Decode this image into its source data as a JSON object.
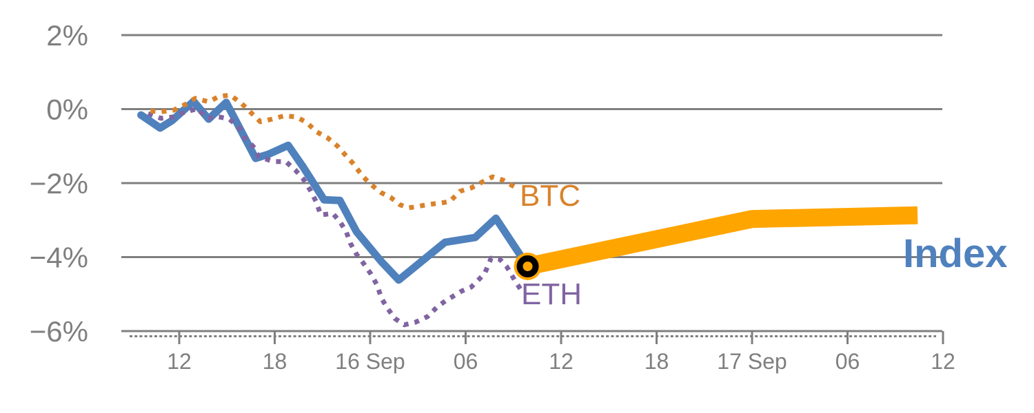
{
  "chart_data": {
    "type": "line",
    "title": "",
    "description": "Intraday percent-change chart: BTC and ETH dotted history, solid Index line with end marker, thick forecast band continuing the Index",
    "x_axis": {
      "unit": "time (hours, ticks every 6h)",
      "ticks": [
        {
          "t": 0,
          "label": "12"
        },
        {
          "t": 6,
          "label": "18"
        },
        {
          "t": 12,
          "label": "16 Sep"
        },
        {
          "t": 18,
          "label": "06"
        },
        {
          "t": 24,
          "label": "12"
        },
        {
          "t": 30,
          "label": "18"
        },
        {
          "t": 36,
          "label": "17 Sep"
        },
        {
          "t": 42,
          "label": "06"
        },
        {
          "t": 48,
          "label": "12"
        }
      ]
    },
    "y_axis": {
      "unit": "percent change",
      "range": [
        -6,
        2
      ],
      "ticks": [
        {
          "v": 2,
          "label": "2%"
        },
        {
          "v": 0,
          "label": "0%"
        },
        {
          "v": -2,
          "label": "−2%"
        },
        {
          "v": -4,
          "label": "−4%"
        },
        {
          "v": -6,
          "label": "−6%"
        }
      ]
    },
    "grid": true,
    "legend_position": "inline-end-of-line",
    "series": [
      {
        "id": "btc",
        "name": "BTC",
        "style": "dotted",
        "color": "#D9822B",
        "points": [
          [
            -1.8,
            -0.05
          ],
          [
            -1.15,
            -0.07
          ],
          [
            -0.35,
            -0.03
          ],
          [
            0.35,
            0.12
          ],
          [
            1,
            0.29
          ],
          [
            1.85,
            0.2
          ],
          [
            2.5,
            0.34
          ],
          [
            3.2,
            0.38
          ],
          [
            3.9,
            0.16
          ],
          [
            4.45,
            -0.07
          ],
          [
            5.1,
            -0.34
          ],
          [
            5.85,
            -0.27
          ],
          [
            6.6,
            -0.18
          ],
          [
            7.35,
            -0.21
          ],
          [
            8,
            -0.36
          ],
          [
            8.65,
            -0.62
          ],
          [
            9.3,
            -0.77
          ],
          [
            9.95,
            -1
          ],
          [
            10.5,
            -1.27
          ],
          [
            10.95,
            -1.48
          ],
          [
            11.5,
            -1.8
          ],
          [
            12,
            -2.02
          ],
          [
            12.7,
            -2.26
          ],
          [
            13.3,
            -2.39
          ],
          [
            13.85,
            -2.58
          ],
          [
            14.4,
            -2.67
          ],
          [
            15,
            -2.63
          ],
          [
            15.6,
            -2.58
          ],
          [
            16.4,
            -2.54
          ],
          [
            17,
            -2.5
          ],
          [
            17.65,
            -2.22
          ],
          [
            18.35,
            -2.13
          ],
          [
            19,
            -1.98
          ],
          [
            19.7,
            -1.83
          ],
          [
            20.35,
            -1.92
          ],
          [
            21.1,
            -2.11
          ]
        ]
      },
      {
        "id": "eth",
        "name": "ETH",
        "style": "dotted",
        "color": "#8064A2",
        "points": [
          [
            -1.95,
            -0.12
          ],
          [
            -1.15,
            -0.25
          ],
          [
            -0.35,
            -0.21
          ],
          [
            0.35,
            -0.08
          ],
          [
            1.15,
            0.01
          ],
          [
            1.75,
            -0.25
          ],
          [
            2.5,
            -0.21
          ],
          [
            3.15,
            -0.27
          ],
          [
            3.75,
            -0.49
          ],
          [
            4.1,
            -0.77
          ],
          [
            4.65,
            -1.01
          ],
          [
            5,
            -1.29
          ],
          [
            5.95,
            -1.42
          ],
          [
            6.7,
            -1.42
          ],
          [
            7.3,
            -1.65
          ],
          [
            7.8,
            -1.89
          ],
          [
            8.25,
            -2.2
          ],
          [
            8.6,
            -2.5
          ],
          [
            8.9,
            -2.86
          ],
          [
            9.65,
            -2.82
          ],
          [
            10.1,
            -3.04
          ],
          [
            10.5,
            -3.32
          ],
          [
            10.75,
            -3.62
          ],
          [
            11.15,
            -3.93
          ],
          [
            11.6,
            -4.18
          ],
          [
            12.05,
            -4.46
          ],
          [
            12.45,
            -4.77
          ],
          [
            12.7,
            -5.11
          ],
          [
            13.1,
            -5.39
          ],
          [
            13.55,
            -5.66
          ],
          [
            14.15,
            -5.83
          ],
          [
            14.85,
            -5.76
          ],
          [
            15.6,
            -5.61
          ],
          [
            16.25,
            -5.33
          ],
          [
            16.75,
            -5.18
          ],
          [
            17.25,
            -5.05
          ],
          [
            17.75,
            -4.92
          ],
          [
            18.35,
            -4.81
          ],
          [
            18.75,
            -4.64
          ],
          [
            19.2,
            -4.44
          ],
          [
            19.6,
            -4.03
          ],
          [
            20.15,
            -4.06
          ],
          [
            20.6,
            -4.27
          ],
          [
            21.1,
            -4.64
          ],
          [
            21.5,
            -4.9
          ]
        ]
      },
      {
        "id": "index",
        "name": "Index",
        "style": "solid",
        "color": "#4F81BD",
        "points": [
          [
            -2.4,
            -0.16
          ],
          [
            -1.2,
            -0.51
          ],
          [
            -0.45,
            -0.31
          ],
          [
            0.9,
            0.21
          ],
          [
            1.85,
            -0.27
          ],
          [
            2.95,
            0.18
          ],
          [
            4.8,
            -1.33
          ],
          [
            5.6,
            -1.22
          ],
          [
            6.85,
            -0.98
          ],
          [
            7.8,
            -1.57
          ],
          [
            9.1,
            -2.45
          ],
          [
            10.1,
            -2.47
          ],
          [
            11.15,
            -3.32
          ],
          [
            12.7,
            -4.12
          ],
          [
            13.8,
            -4.62
          ],
          [
            16.7,
            -3.6
          ],
          [
            18.6,
            -3.47
          ],
          [
            19.9,
            -2.95
          ],
          [
            21.9,
            -4.25
          ]
        ]
      },
      {
        "id": "index_forecast",
        "name": "Index forecast band",
        "style": "band",
        "color": "#FFA500",
        "points": [
          [
            21.9,
            -4.25
          ],
          [
            36,
            -2.97
          ],
          [
            46.4,
            -2.87
          ]
        ]
      }
    ],
    "marker": {
      "t": 21.9,
      "v": -4.25,
      "ring_color": "#000000",
      "fill_color": "#FFA500"
    },
    "colors": {
      "grid": "#7f7f7f",
      "axis_text": "#7f7f7f"
    }
  },
  "labels": {
    "btc": "BTC",
    "eth": "ETH",
    "index": "Index"
  }
}
